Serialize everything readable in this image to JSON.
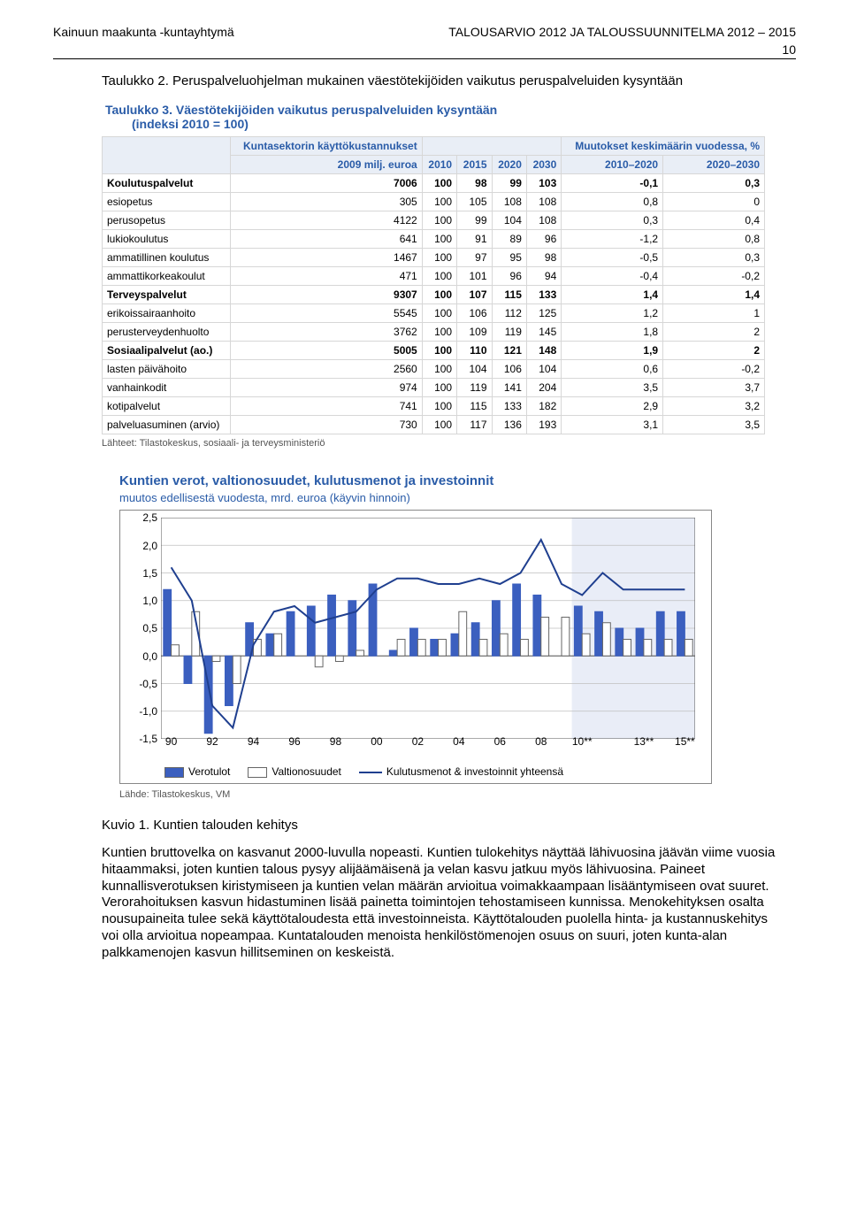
{
  "header": {
    "left": "Kainuun maakunta -kuntayhtymä",
    "right": "TALOUSARVIO 2012 JA TALOUSSUUNNITELMA 2012 – 2015",
    "page_number": "10"
  },
  "intro": {
    "caption": "Taulukko 2. Peruspalveluohjelman mukainen väestötekijöiden vaikutus peruspalveluiden kysyntään"
  },
  "table3": {
    "title": "Taulukko 3. Väestötekijöiden vaikutus peruspalveluiden kysyntään",
    "subtitle": "(indeksi 2010 = 100)",
    "col_group1": "Kuntasektorin käyttökustannukset",
    "col_group2": "Muutokset keskimäärin vuodessa, %",
    "columns": [
      "",
      "2009 milj. euroa",
      "2010",
      "2015",
      "2020",
      "2030",
      "2010–2020",
      "2020–2030"
    ],
    "rows": [
      {
        "cat": true,
        "label": "Koulutuspalvelut",
        "cells": [
          "7006",
          "100",
          "98",
          "99",
          "103",
          "-0,1",
          "0,3"
        ]
      },
      {
        "cat": false,
        "label": "esiopetus",
        "cells": [
          "305",
          "100",
          "105",
          "108",
          "108",
          "0,8",
          "0"
        ]
      },
      {
        "cat": false,
        "label": "perusopetus",
        "cells": [
          "4122",
          "100",
          "99",
          "104",
          "108",
          "0,3",
          "0,4"
        ]
      },
      {
        "cat": false,
        "label": "lukiokoulutus",
        "cells": [
          "641",
          "100",
          "91",
          "89",
          "96",
          "-1,2",
          "0,8"
        ]
      },
      {
        "cat": false,
        "label": "ammatillinen koulutus",
        "cells": [
          "1467",
          "100",
          "97",
          "95",
          "98",
          "-0,5",
          "0,3"
        ]
      },
      {
        "cat": false,
        "label": "ammattikorkeakoulut",
        "cells": [
          "471",
          "100",
          "101",
          "96",
          "94",
          "-0,4",
          "-0,2"
        ]
      },
      {
        "cat": true,
        "label": "Terveyspalvelut",
        "cells": [
          "9307",
          "100",
          "107",
          "115",
          "133",
          "1,4",
          "1,4"
        ]
      },
      {
        "cat": false,
        "label": "erikoissairaanhoito",
        "cells": [
          "5545",
          "100",
          "106",
          "112",
          "125",
          "1,2",
          "1"
        ]
      },
      {
        "cat": false,
        "label": "perusterveydenhuolto",
        "cells": [
          "3762",
          "100",
          "109",
          "119",
          "145",
          "1,8",
          "2"
        ]
      },
      {
        "cat": true,
        "label": "Sosiaalipalvelut (ao.)",
        "cells": [
          "5005",
          "100",
          "110",
          "121",
          "148",
          "1,9",
          "2"
        ]
      },
      {
        "cat": false,
        "label": "lasten päivähoito",
        "cells": [
          "2560",
          "100",
          "104",
          "106",
          "104",
          "0,6",
          "-0,2"
        ]
      },
      {
        "cat": false,
        "label": "vanhainkodit",
        "cells": [
          "974",
          "100",
          "119",
          "141",
          "204",
          "3,5",
          "3,7"
        ]
      },
      {
        "cat": false,
        "label": "kotipalvelut",
        "cells": [
          "741",
          "100",
          "115",
          "133",
          "182",
          "2,9",
          "3,2"
        ]
      },
      {
        "cat": false,
        "label": "palveluasuminen (arvio)",
        "cells": [
          "730",
          "100",
          "117",
          "136",
          "193",
          "3,1",
          "3,5"
        ]
      }
    ],
    "source": "Lähteet: Tilastokeskus, sosiaali- ja terveysministeriö"
  },
  "chart": {
    "type": "bar+line",
    "title_line1": "Kuntien verot, valtionosuudet, kulutusmenot ja investoinnit",
    "title_line2": "muutos edellisestä vuodesta, mrd. euroa (käyvin hinnoin)",
    "y": {
      "min": -1.5,
      "max": 2.5,
      "ticks": [
        -1.5,
        -1.0,
        -0.5,
        0.0,
        0.5,
        1.0,
        1.5,
        2.0,
        2.5
      ],
      "labels": [
        "-1,5",
        "-1,0",
        "-0,5",
        "0,0",
        "0,5",
        "1,0",
        "1,5",
        "2,0",
        "2,5"
      ]
    },
    "x": {
      "labels": [
        "90",
        "92",
        "94",
        "96",
        "98",
        "00",
        "02",
        "04",
        "06",
        "08",
        "10**",
        "13**",
        "15**"
      ]
    },
    "years": [
      "90",
      "91",
      "92",
      "93",
      "94",
      "95",
      "96",
      "97",
      "98",
      "99",
      "00",
      "01",
      "02",
      "03",
      "04",
      "05",
      "06",
      "07",
      "08",
      "09",
      "10**",
      "11**",
      "12**",
      "13**",
      "14**",
      "15**"
    ],
    "series": {
      "verotulot": [
        1.2,
        -0.5,
        -1.4,
        -0.9,
        0.6,
        0.4,
        0.8,
        0.9,
        1.1,
        1.0,
        1.3,
        0.1,
        0.5,
        0.3,
        0.4,
        0.6,
        1.0,
        1.3,
        1.1,
        0.0,
        0.9,
        0.8,
        0.5,
        0.5,
        0.8,
        0.8
      ],
      "valtionosuudet": [
        0.2,
        0.8,
        -0.1,
        -0.5,
        0.3,
        0.4,
        0.0,
        -0.2,
        -0.1,
        0.1,
        0.0,
        0.3,
        0.3,
        0.3,
        0.8,
        0.3,
        0.4,
        0.3,
        0.7,
        0.7,
        0.4,
        0.6,
        0.3,
        0.3,
        0.3,
        0.3
      ],
      "kulutus_inv": [
        1.6,
        1.0,
        -0.9,
        -1.3,
        0.2,
        0.8,
        0.9,
        0.6,
        0.7,
        0.8,
        1.2,
        1.4,
        1.4,
        1.3,
        1.3,
        1.4,
        1.3,
        1.5,
        2.1,
        1.3,
        1.1,
        1.5,
        1.2,
        1.2,
        1.2,
        1.2
      ]
    },
    "colors": {
      "verotulot": "#3b5fbf",
      "valtionosuudet_fill": "#ffffff",
      "valtionosuudet_border": "#666666",
      "line": "#1f3f8f",
      "grid": "#bfbfbf",
      "forecast_band": "#e9edf7",
      "axis": "#555555"
    },
    "legend": {
      "a": "Verotulot",
      "b": "Valtionosuudet",
      "c": "Kulutusmenot & investoinnit yhteensä"
    },
    "source": "Lähde: Tilastokeskus, VM"
  },
  "kuvio": {
    "caption": "Kuvio 1. Kuntien talouden kehitys",
    "para": "Kuntien bruttovelka on kasvanut 2000-luvulla nopeasti. Kuntien tulokehitys näyttää lähivuosina jäävän viime vuosia hitaammaksi, joten kuntien talous pysyy alijäämäisenä ja velan kasvu jatkuu myös lähivuosina. Paineet kunnallisverotuksen kiristymiseen ja kuntien velan määrän arvioitua voimakkaampaan lisääntymiseen ovat suuret. Verorahoituksen kasvun hidastuminen lisää painetta toimintojen tehostamiseen kunnissa. Menokehityksen osalta nousupaineita tulee sekä käyttötaloudesta että investoinneista. Käyttötalouden puolella hinta- ja kustannuskehitys voi olla arvioitua nopeampaa. Kuntatalouden menoista henkilöstömenojen osuus on suuri, joten kunta-alan palkkamenojen kasvun hillitseminen on keskeistä."
  }
}
